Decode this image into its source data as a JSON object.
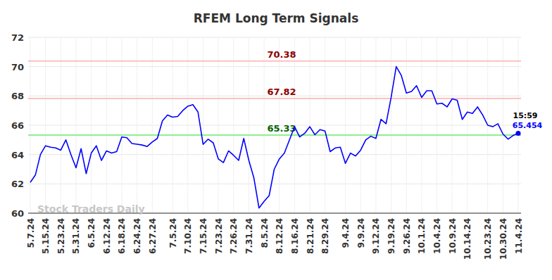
{
  "chart_data": {
    "type": "line",
    "title": "RFEM Long Term Signals",
    "categories": [
      "5.7.24",
      null,
      null,
      "5.15.24",
      null,
      null,
      "5.23.24",
      null,
      null,
      "5.31.24",
      null,
      null,
      "6.5.24",
      null,
      null,
      "6.12.24",
      null,
      null,
      "6.18.24",
      null,
      null,
      "6.24.24",
      null,
      null,
      "6.27.24",
      null,
      null,
      null,
      "7.5.24",
      null,
      null,
      "7.10.24",
      null,
      null,
      "7.15.24",
      null,
      null,
      "7.23.24",
      null,
      null,
      "7.26.24",
      null,
      null,
      "7.31.24",
      null,
      null,
      "8.5.24",
      null,
      null,
      "8.12.24",
      null,
      null,
      "8.16.24",
      null,
      null,
      "8.21.24",
      null,
      null,
      "8.29.24",
      null,
      null,
      null,
      "9.4.24",
      null,
      null,
      "9.9.24",
      null,
      null,
      "9.12.24",
      null,
      null,
      "9.19.24",
      null,
      null,
      "9.26.24",
      null,
      null,
      "10.1.24",
      null,
      null,
      "10.4.24",
      null,
      null,
      "10.9.24",
      null,
      null,
      "10.14.24",
      null,
      null,
      null,
      "10.23.24",
      null,
      null,
      "10.30.24",
      null,
      null,
      "11.4.24"
    ],
    "series": [
      {
        "color": "#0000ff",
        "values": [
          62.1,
          62.6,
          64.0,
          64.6,
          64.5,
          64.45,
          64.3,
          65.0,
          64.0,
          63.1,
          64.4,
          62.7,
          64.1,
          64.6,
          63.6,
          64.25,
          64.1,
          64.2,
          65.2,
          65.15,
          64.75,
          64.7,
          64.65,
          64.55,
          64.85,
          65.1,
          66.3,
          66.7,
          66.55,
          66.6,
          67.0,
          67.3,
          67.4,
          66.9,
          64.7,
          65.05,
          64.8,
          63.7,
          63.45,
          64.25,
          63.95,
          63.6,
          65.1,
          63.6,
          62.4,
          60.35,
          60.8,
          61.2,
          63.0,
          63.7,
          64.1,
          65.0,
          65.9,
          65.2,
          65.45,
          65.9,
          65.35,
          65.7,
          65.6,
          64.2,
          64.45,
          64.5,
          63.4,
          64.1,
          63.9,
          64.3,
          65.0,
          65.25,
          65.1,
          66.4,
          66.1,
          67.9,
          70.0,
          69.4,
          68.2,
          68.3,
          68.7,
          67.9,
          68.35,
          68.35,
          67.45,
          67.5,
          67.25,
          67.8,
          67.7,
          66.4,
          66.9,
          66.8,
          67.25,
          66.7,
          66.0,
          65.9,
          66.1,
          65.4,
          65.05,
          65.3,
          65.454
        ]
      }
    ],
    "ylim": [
      60,
      72
    ],
    "yticks": [
      60,
      62,
      64,
      66,
      68,
      70,
      72
    ],
    "grid": true,
    "reference_lines": [
      {
        "value": 70.38,
        "color": "#8b0000",
        "line_color": "#ffc0c0"
      },
      {
        "value": 67.82,
        "color": "#8b0000",
        "line_color": "#ffc0c0"
      },
      {
        "value": 65.33,
        "color": "#006400",
        "line_color": "#90ee90"
      }
    ],
    "last_point": {
      "time": "15:59",
      "value": 65.454,
      "color": "#0000ff"
    },
    "watermark": "Stock Traders Daily"
  }
}
